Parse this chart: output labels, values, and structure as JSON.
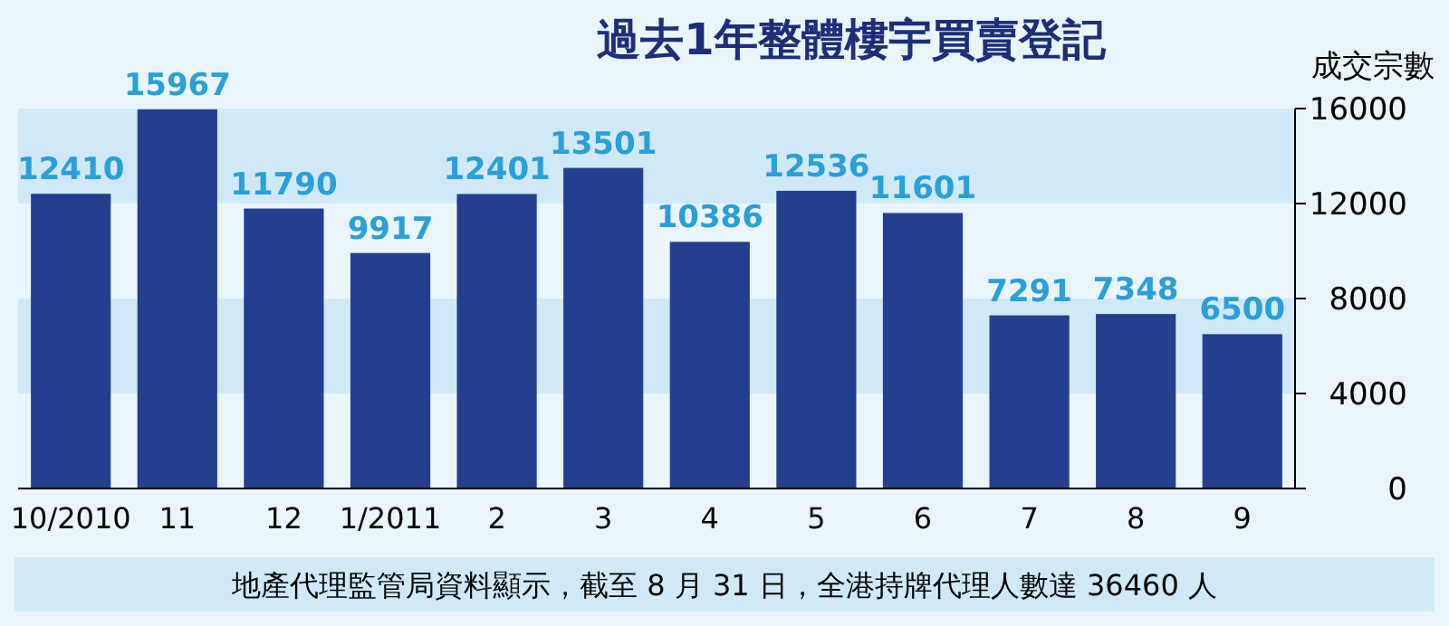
{
  "chart_data": {
    "type": "bar",
    "title": "過去1年整體樓宇買賣登記",
    "ylabel": "成交宗數",
    "categories": [
      "10/2010",
      "11",
      "12",
      "1/2011",
      "2",
      "3",
      "4",
      "5",
      "6",
      "7",
      "8",
      "9"
    ],
    "values": [
      12410,
      15967,
      11790,
      9917,
      12401,
      13501,
      10386,
      12536,
      11601,
      7291,
      7348,
      6500
    ],
    "color": "#22408f",
    "data_labels": true,
    "ylim": [
      0,
      16000
    ],
    "yticks": [
      0,
      4000,
      8000,
      12000,
      16000
    ],
    "bands": [
      {
        "axis": "y",
        "from": 4000,
        "to": 8000,
        "color": "#cfe9f8"
      },
      {
        "axis": "y",
        "from": 12000,
        "to": 16000,
        "color": "#cfe9f8"
      }
    ],
    "annotations": [
      "地產代理監管局資料顯示，截至 8 月 31 日，全港持牌代理人數達 36460 人"
    ]
  }
}
